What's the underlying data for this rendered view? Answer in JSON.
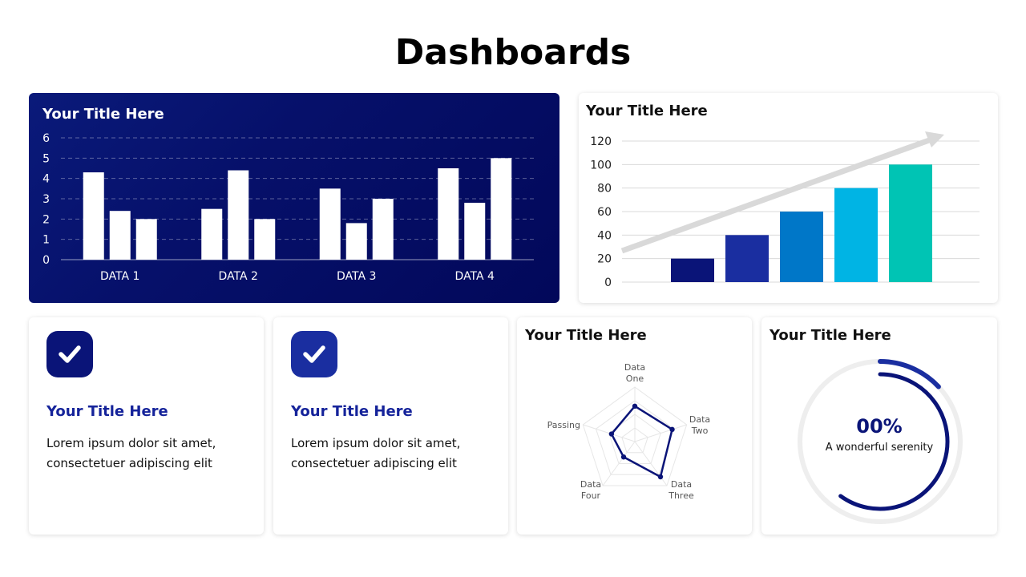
{
  "page": {
    "title": "Dashboards"
  },
  "colors": {
    "navy": "#0a1478",
    "royal": "#1a2ea0",
    "blue": "#0077c8",
    "sky": "#00b4e4",
    "teal": "#00c4b4",
    "arrow": "#d9d9d9",
    "ring_track": "#eeeeee"
  },
  "chart_data": [
    {
      "type": "bar",
      "title": "Your Title Here",
      "categories": [
        "DATA 1",
        "DATA 2",
        "DATA 3",
        "DATA 4"
      ],
      "series": [
        {
          "values": [
            4.3,
            2.5,
            3.5,
            4.5
          ]
        },
        {
          "values": [
            2.4,
            4.4,
            1.8,
            2.8
          ]
        },
        {
          "values": [
            2.0,
            2.0,
            3.0,
            5.0
          ]
        }
      ],
      "ylim": [
        0,
        6
      ],
      "yticks": [
        0,
        1,
        2,
        3,
        4,
        5,
        6
      ],
      "grid": true
    },
    {
      "type": "bar",
      "title": "Your Title Here",
      "values": [
        20,
        40,
        60,
        80,
        100
      ],
      "ylim": [
        0,
        120
      ],
      "yticks": [
        0,
        20,
        40,
        60,
        80,
        100,
        120
      ],
      "grid": true,
      "trend_arrow": true
    },
    {
      "type": "radar",
      "title": "Your Title Here",
      "axes": [
        {
          "line1": "Data",
          "line2": "One",
          "value": 0.65
        },
        {
          "line1": "Data",
          "line2": "Two",
          "value": 0.72
        },
        {
          "line1": "Data",
          "line2": "Three",
          "value": 0.8
        },
        {
          "line1": "Data",
          "line2": "Four",
          "value": 0.35
        },
        {
          "line1": "Passing",
          "line2": "",
          "value": 0.45
        }
      ]
    },
    {
      "type": "donut",
      "title": "Your Title Here",
      "value_label": "00%",
      "caption": "A wonderful serenity",
      "outer_fraction": 0.13,
      "inner_fraction": 0.6
    }
  ],
  "info_cards": [
    {
      "title": "Your Title Here",
      "text": "Lorem ipsum dolor sit amet, consectetuer adipiscing elit",
      "icon": "check-icon"
    },
    {
      "title": "Your Title Here",
      "text": "Lorem ipsum dolor sit amet, consectetuer adipiscing elit",
      "icon": "check-icon"
    }
  ]
}
